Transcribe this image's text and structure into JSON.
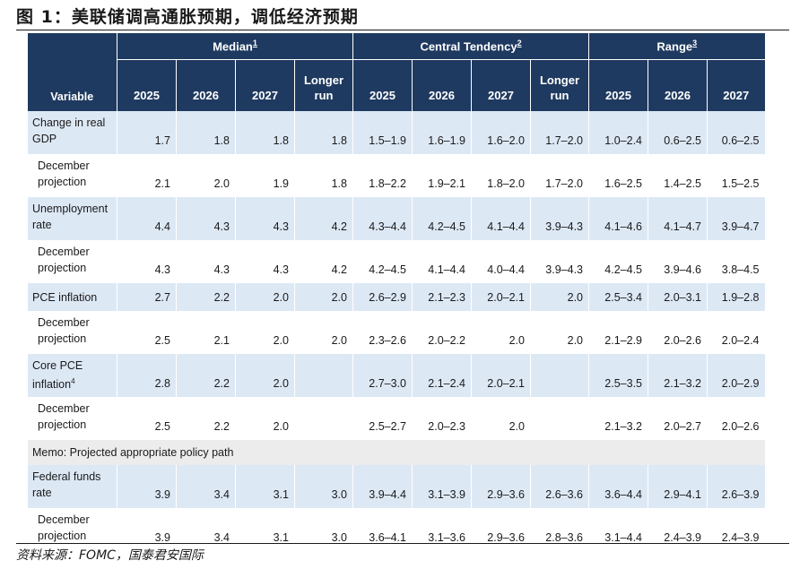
{
  "figure_title": "图 1：美联储调高通胀预期，调低经济预期",
  "source": "资料来源：FOMC，国泰君安国际",
  "header": {
    "groups": [
      {
        "label": "Median",
        "note": "1"
      },
      {
        "label": "Central Tendency",
        "note": "2"
      },
      {
        "label": "Range",
        "note": "3"
      }
    ],
    "variable_label": "Variable",
    "median_cols": [
      "2025",
      "2026",
      "2027",
      "Longer run"
    ],
    "central_cols": [
      "2025",
      "2026",
      "2027",
      "Longer run"
    ],
    "range_cols": [
      "2025",
      "2026",
      "2027"
    ]
  },
  "rows": [
    {
      "label": "Change in real GDP",
      "note": "",
      "cells": [
        "1.7",
        "1.8",
        "1.8",
        "1.8",
        "1.5–1.9",
        "1.6–1.9",
        "1.6–2.0",
        "1.7–2.0",
        "1.0–2.4",
        "0.6–2.5",
        "0.6–2.5"
      ]
    },
    {
      "label": "December projection",
      "note": "",
      "cells": [
        "2.1",
        "2.0",
        "1.9",
        "1.8",
        "1.8–2.2",
        "1.9–2.1",
        "1.8–2.0",
        "1.7–2.0",
        "1.6–2.5",
        "1.4–2.5",
        "1.5–2.5"
      ]
    },
    {
      "label": "Unemployment rate",
      "note": "",
      "cells": [
        "4.4",
        "4.3",
        "4.3",
        "4.2",
        "4.3–4.4",
        "4.2–4.5",
        "4.1–4.4",
        "3.9–4.3",
        "4.1–4.6",
        "4.1–4.7",
        "3.9–4.7"
      ]
    },
    {
      "label": "December projection",
      "note": "",
      "cells": [
        "4.3",
        "4.3",
        "4.3",
        "4.2",
        "4.2–4.5",
        "4.1–4.4",
        "4.0–4.4",
        "3.9–4.3",
        "4.2–4.5",
        "3.9–4.6",
        "3.8–4.5"
      ]
    },
    {
      "label": "PCE inflation",
      "note": "",
      "cells": [
        "2.7",
        "2.2",
        "2.0",
        "2.0",
        "2.6–2.9",
        "2.1–2.3",
        "2.0–2.1",
        "2.0",
        "2.5–3.4",
        "2.0–3.1",
        "1.9–2.8"
      ]
    },
    {
      "label": "December projection",
      "note": "",
      "cells": [
        "2.5",
        "2.1",
        "2.0",
        "2.0",
        "2.3–2.6",
        "2.0–2.2",
        "2.0",
        "2.0",
        "2.1–2.9",
        "2.0–2.6",
        "2.0–2.4"
      ]
    },
    {
      "label": "Core PCE inflation",
      "note": "4",
      "cells": [
        "2.8",
        "2.2",
        "2.0",
        "",
        "2.7–3.0",
        "2.1–2.4",
        "2.0–2.1",
        "",
        "2.5–3.5",
        "2.1–3.2",
        "2.0–2.9"
      ]
    },
    {
      "label": "December projection",
      "note": "",
      "cells": [
        "2.5",
        "2.2",
        "2.0",
        "",
        "2.5–2.7",
        "2.0–2.3",
        "2.0",
        "",
        "2.1–3.2",
        "2.0–2.7",
        "2.0–2.6"
      ]
    }
  ],
  "memo": "Memo: Projected appropriate policy path",
  "policy_rows": [
    {
      "label": "Federal funds rate",
      "cells": [
        "3.9",
        "3.4",
        "3.1",
        "3.0",
        "3.9–4.4",
        "3.1–3.9",
        "2.9–3.6",
        "2.6–3.6",
        "3.6–4.4",
        "2.9–4.1",
        "2.6–3.9"
      ]
    },
    {
      "label": "December projection",
      "cells": [
        "3.9",
        "3.4",
        "3.1",
        "3.0",
        "3.6–4.1",
        "3.1–3.6",
        "2.9–3.6",
        "2.8–3.6",
        "3.1–4.4",
        "2.4–3.9",
        "2.4–3.9"
      ]
    }
  ]
}
